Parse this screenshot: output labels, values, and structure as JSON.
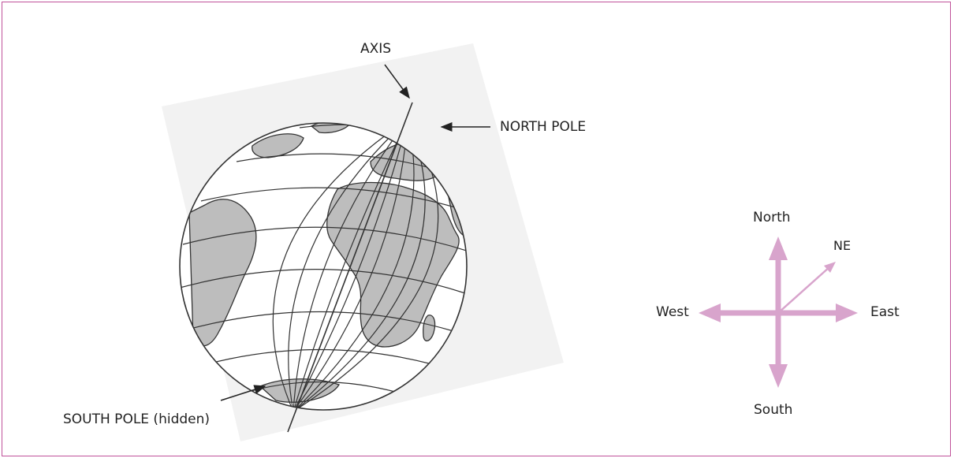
{
  "globe": {
    "axis_label": "AXIS",
    "north_pole_label": "NORTH POLE",
    "south_pole_label": "SOUTH POLE (hidden)"
  },
  "compass": {
    "north": "North",
    "south": "South",
    "east": "East",
    "west": "West",
    "northeast": "NE"
  },
  "colors": {
    "frame": "#c0529a",
    "compass_arrow": "#d8a4cc",
    "ink": "#222222",
    "land": "#b8b8b8"
  }
}
